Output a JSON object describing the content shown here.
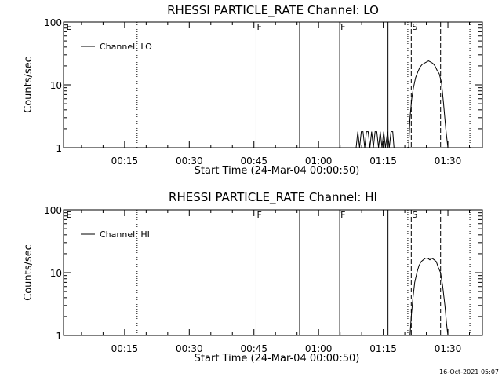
{
  "footer_timestamp": "16-Oct-2021 05:07",
  "chart_data": [
    {
      "type": "line",
      "title": "RHESSI PARTICLE_RATE Channel: LO",
      "xlabel": "Start Time (24-Mar-04 00:00:50)",
      "ylabel": "Counts/sec",
      "yscale": "log",
      "ylim": [
        1,
        100
      ],
      "xlim_minutes": [
        0.83,
        98.0
      ],
      "x_ticks": [
        {
          "min": 15,
          "label": "00:15"
        },
        {
          "min": 30,
          "label": "00:30"
        },
        {
          "min": 45,
          "label": "00:45"
        },
        {
          "min": 60,
          "label": "01:00"
        },
        {
          "min": 75,
          "label": "01:15"
        },
        {
          "min": 90,
          "label": "01:30"
        }
      ],
      "y_ticks": [
        {
          "value": 1,
          "label": "1"
        },
        {
          "value": 10,
          "label": "10"
        },
        {
          "value": 100,
          "label": "100"
        }
      ],
      "legend": {
        "label": "Channel: LO",
        "position": "top-left"
      },
      "markers": [
        {
          "min": 1.3,
          "style": "none",
          "label": "E"
        },
        {
          "min": 17.9,
          "style": "dotted",
          "label": ""
        },
        {
          "min": 45.5,
          "style": "solid",
          "label": "F"
        },
        {
          "min": 55.6,
          "style": "solid",
          "label": ""
        },
        {
          "min": 64.9,
          "style": "solid",
          "label": "F"
        },
        {
          "min": 76.1,
          "style": "solid",
          "label": ""
        },
        {
          "min": 80.7,
          "style": "dotted",
          "label": ""
        },
        {
          "min": 81.5,
          "style": "dashed",
          "label": "S"
        },
        {
          "min": 88.3,
          "style": "dashed",
          "label": ""
        },
        {
          "min": 95.1,
          "style": "dotted",
          "label": ""
        }
      ],
      "series": [
        {
          "values": [
            [
              68.7,
              1
            ],
            [
              69.1,
              1.8
            ],
            [
              69.5,
              1
            ],
            [
              69.9,
              1.8
            ],
            [
              70.3,
              1.8
            ],
            [
              70.7,
              1
            ],
            [
              71.1,
              1.8
            ],
            [
              71.5,
              1.8
            ],
            [
              71.9,
              1
            ],
            [
              72.3,
              1.8
            ],
            [
              72.7,
              1
            ],
            [
              73.1,
              1.8
            ],
            [
              73.5,
              1.8
            ],
            [
              73.9,
              1
            ],
            [
              74.3,
              1.8
            ],
            [
              74.7,
              1
            ],
            [
              75.1,
              1.8
            ],
            [
              75.5,
              1
            ],
            [
              76.0,
              1.8
            ],
            [
              76.4,
              1
            ],
            [
              76.8,
              1.8
            ],
            [
              77.2,
              1.8
            ],
            [
              77.5,
              1
            ],
            [
              80.9,
              1
            ],
            [
              81.2,
              3
            ],
            [
              81.6,
              6
            ],
            [
              82.0,
              9
            ],
            [
              82.5,
              13
            ],
            [
              83.0,
              16
            ],
            [
              83.5,
              19
            ],
            [
              84.0,
              21
            ],
            [
              84.5,
              22
            ],
            [
              85.0,
              23
            ],
            [
              85.5,
              24
            ],
            [
              86.0,
              23
            ],
            [
              86.5,
              22
            ],
            [
              87.0,
              20
            ],
            [
              87.5,
              17
            ],
            [
              88.0,
              15
            ],
            [
              88.5,
              11
            ],
            [
              89.0,
              5
            ],
            [
              89.5,
              2
            ],
            [
              90.0,
              1
            ]
          ]
        }
      ]
    },
    {
      "type": "line",
      "title": "RHESSI PARTICLE_RATE Channel: HI",
      "xlabel": "Start Time (24-Mar-04 00:00:50)",
      "ylabel": "Counts/sec",
      "yscale": "log",
      "ylim": [
        1,
        100
      ],
      "xlim_minutes": [
        0.83,
        98.0
      ],
      "x_ticks": [
        {
          "min": 15,
          "label": "00:15"
        },
        {
          "min": 30,
          "label": "00:30"
        },
        {
          "min": 45,
          "label": "00:45"
        },
        {
          "min": 60,
          "label": "01:00"
        },
        {
          "min": 75,
          "label": "01:15"
        },
        {
          "min": 90,
          "label": "01:30"
        }
      ],
      "y_ticks": [
        {
          "value": 1,
          "label": "1"
        },
        {
          "value": 10,
          "label": "10"
        },
        {
          "value": 100,
          "label": "100"
        }
      ],
      "legend": {
        "label": "Channel: HI",
        "position": "top-left"
      },
      "markers": [
        {
          "min": 1.3,
          "style": "none",
          "label": "E"
        },
        {
          "min": 17.9,
          "style": "dotted",
          "label": ""
        },
        {
          "min": 45.5,
          "style": "solid",
          "label": "F"
        },
        {
          "min": 55.6,
          "style": "solid",
          "label": ""
        },
        {
          "min": 64.9,
          "style": "solid",
          "label": "F"
        },
        {
          "min": 76.1,
          "style": "solid",
          "label": ""
        },
        {
          "min": 80.7,
          "style": "dotted",
          "label": ""
        },
        {
          "min": 81.5,
          "style": "dashed",
          "label": "S"
        },
        {
          "min": 88.3,
          "style": "dashed",
          "label": ""
        },
        {
          "min": 95.1,
          "style": "dotted",
          "label": ""
        }
      ],
      "series": [
        {
          "values": [
            [
              81.2,
              1
            ],
            [
              81.5,
              2
            ],
            [
              81.9,
              4
            ],
            [
              82.3,
              7
            ],
            [
              82.8,
              10
            ],
            [
              83.3,
              13
            ],
            [
              83.8,
              15
            ],
            [
              84.3,
              16
            ],
            [
              84.8,
              17
            ],
            [
              85.3,
              17
            ],
            [
              85.8,
              16
            ],
            [
              86.3,
              17
            ],
            [
              86.8,
              16
            ],
            [
              87.3,
              15
            ],
            [
              87.8,
              12
            ],
            [
              88.3,
              10
            ],
            [
              88.8,
              6
            ],
            [
              89.3,
              3
            ],
            [
              89.7,
              1.5
            ],
            [
              90.0,
              1
            ]
          ]
        }
      ]
    }
  ]
}
